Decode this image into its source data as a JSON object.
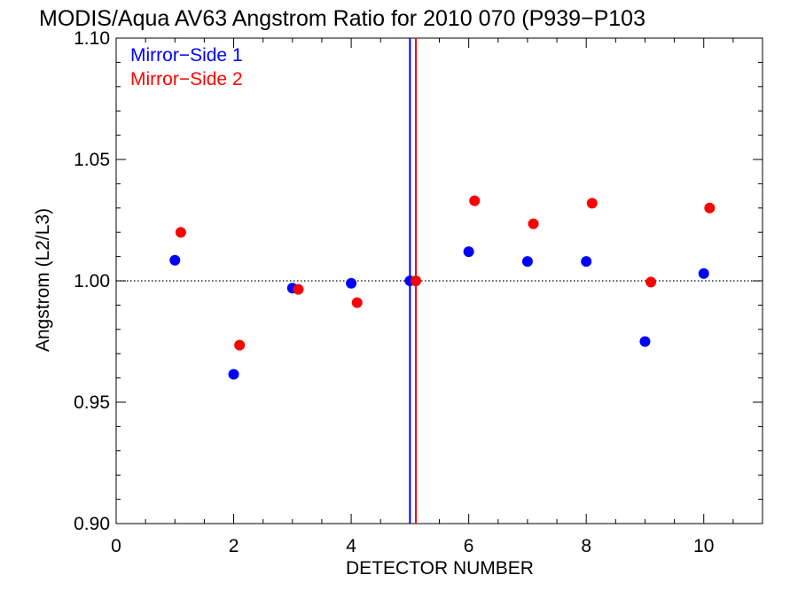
{
  "chart_data": {
    "type": "scatter",
    "title": "MODIS/Aqua AV63 Angstrom Ratio for 2010 070 (P939−P103",
    "xlabel": "DETECTOR NUMBER",
    "ylabel": "Angstrom (L2/L3)",
    "xlim": [
      0,
      11
    ],
    "ylim": [
      0.9,
      1.1
    ],
    "xticks": [
      0,
      2,
      4,
      6,
      8,
      10
    ],
    "xtick_labels": [
      "0",
      "2",
      "4",
      "6",
      "8",
      "10"
    ],
    "yticks": [
      0.9,
      0.95,
      1.0,
      1.05,
      1.1
    ],
    "ytick_labels": [
      "0.90",
      "0.95",
      "1.00",
      "1.05",
      "1.10"
    ],
    "reference_line_y": 1.0,
    "legend_position": "top-left",
    "series": [
      {
        "name": "Mirror−Side 1",
        "color": "#0000ff",
        "x": [
          1,
          2,
          3,
          4,
          5,
          6,
          7,
          8,
          9,
          10
        ],
        "y": [
          1.0085,
          0.9615,
          0.997,
          0.999,
          1.0,
          1.012,
          1.008,
          1.008,
          0.975,
          1.003
        ],
        "vertical_line_x": 5.0
      },
      {
        "name": "Mirror−Side 2",
        "color": "#ff0000",
        "x": [
          1.1,
          2.1,
          3.1,
          4.1,
          5.1,
          6.1,
          7.1,
          8.1,
          9.1,
          10.1
        ],
        "y": [
          1.02,
          0.9735,
          0.9965,
          0.991,
          1.0,
          1.033,
          1.0235,
          1.032,
          0.9995,
          1.03
        ],
        "vertical_line_x": 5.1
      }
    ]
  }
}
